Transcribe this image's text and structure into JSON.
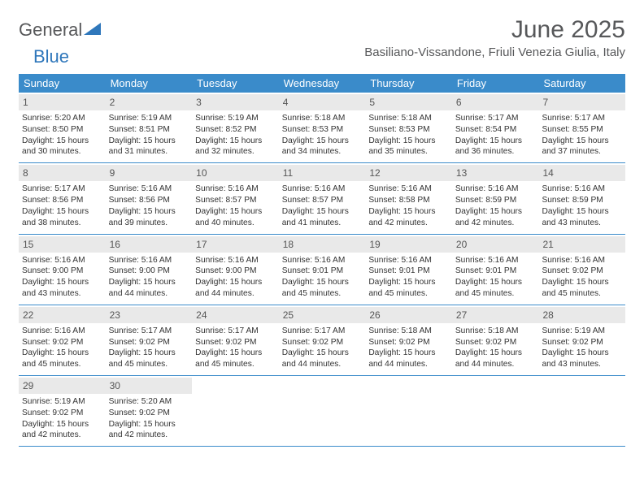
{
  "brand": {
    "word1": "General",
    "word2": "Blue"
  },
  "title": "June 2025",
  "location": "Basiliano-Vissandone, Friuli Venezia Giulia, Italy",
  "colors": {
    "header_bg": "#3a8bca",
    "header_text": "#ffffff",
    "daynum_bg": "#e9e9e9",
    "rule": "#3a8bca",
    "brand_gray": "#57585a",
    "brand_blue": "#2f77bb"
  },
  "weekdays": [
    "Sunday",
    "Monday",
    "Tuesday",
    "Wednesday",
    "Thursday",
    "Friday",
    "Saturday"
  ],
  "weeks": [
    [
      {
        "n": "1",
        "sr": "Sunrise: 5:20 AM",
        "ss": "Sunset: 8:50 PM",
        "d1": "Daylight: 15 hours",
        "d2": "and 30 minutes."
      },
      {
        "n": "2",
        "sr": "Sunrise: 5:19 AM",
        "ss": "Sunset: 8:51 PM",
        "d1": "Daylight: 15 hours",
        "d2": "and 31 minutes."
      },
      {
        "n": "3",
        "sr": "Sunrise: 5:19 AM",
        "ss": "Sunset: 8:52 PM",
        "d1": "Daylight: 15 hours",
        "d2": "and 32 minutes."
      },
      {
        "n": "4",
        "sr": "Sunrise: 5:18 AM",
        "ss": "Sunset: 8:53 PM",
        "d1": "Daylight: 15 hours",
        "d2": "and 34 minutes."
      },
      {
        "n": "5",
        "sr": "Sunrise: 5:18 AM",
        "ss": "Sunset: 8:53 PM",
        "d1": "Daylight: 15 hours",
        "d2": "and 35 minutes."
      },
      {
        "n": "6",
        "sr": "Sunrise: 5:17 AM",
        "ss": "Sunset: 8:54 PM",
        "d1": "Daylight: 15 hours",
        "d2": "and 36 minutes."
      },
      {
        "n": "7",
        "sr": "Sunrise: 5:17 AM",
        "ss": "Sunset: 8:55 PM",
        "d1": "Daylight: 15 hours",
        "d2": "and 37 minutes."
      }
    ],
    [
      {
        "n": "8",
        "sr": "Sunrise: 5:17 AM",
        "ss": "Sunset: 8:56 PM",
        "d1": "Daylight: 15 hours",
        "d2": "and 38 minutes."
      },
      {
        "n": "9",
        "sr": "Sunrise: 5:16 AM",
        "ss": "Sunset: 8:56 PM",
        "d1": "Daylight: 15 hours",
        "d2": "and 39 minutes."
      },
      {
        "n": "10",
        "sr": "Sunrise: 5:16 AM",
        "ss": "Sunset: 8:57 PM",
        "d1": "Daylight: 15 hours",
        "d2": "and 40 minutes."
      },
      {
        "n": "11",
        "sr": "Sunrise: 5:16 AM",
        "ss": "Sunset: 8:57 PM",
        "d1": "Daylight: 15 hours",
        "d2": "and 41 minutes."
      },
      {
        "n": "12",
        "sr": "Sunrise: 5:16 AM",
        "ss": "Sunset: 8:58 PM",
        "d1": "Daylight: 15 hours",
        "d2": "and 42 minutes."
      },
      {
        "n": "13",
        "sr": "Sunrise: 5:16 AM",
        "ss": "Sunset: 8:59 PM",
        "d1": "Daylight: 15 hours",
        "d2": "and 42 minutes."
      },
      {
        "n": "14",
        "sr": "Sunrise: 5:16 AM",
        "ss": "Sunset: 8:59 PM",
        "d1": "Daylight: 15 hours",
        "d2": "and 43 minutes."
      }
    ],
    [
      {
        "n": "15",
        "sr": "Sunrise: 5:16 AM",
        "ss": "Sunset: 9:00 PM",
        "d1": "Daylight: 15 hours",
        "d2": "and 43 minutes."
      },
      {
        "n": "16",
        "sr": "Sunrise: 5:16 AM",
        "ss": "Sunset: 9:00 PM",
        "d1": "Daylight: 15 hours",
        "d2": "and 44 minutes."
      },
      {
        "n": "17",
        "sr": "Sunrise: 5:16 AM",
        "ss": "Sunset: 9:00 PM",
        "d1": "Daylight: 15 hours",
        "d2": "and 44 minutes."
      },
      {
        "n": "18",
        "sr": "Sunrise: 5:16 AM",
        "ss": "Sunset: 9:01 PM",
        "d1": "Daylight: 15 hours",
        "d2": "and 45 minutes."
      },
      {
        "n": "19",
        "sr": "Sunrise: 5:16 AM",
        "ss": "Sunset: 9:01 PM",
        "d1": "Daylight: 15 hours",
        "d2": "and 45 minutes."
      },
      {
        "n": "20",
        "sr": "Sunrise: 5:16 AM",
        "ss": "Sunset: 9:01 PM",
        "d1": "Daylight: 15 hours",
        "d2": "and 45 minutes."
      },
      {
        "n": "21",
        "sr": "Sunrise: 5:16 AM",
        "ss": "Sunset: 9:02 PM",
        "d1": "Daylight: 15 hours",
        "d2": "and 45 minutes."
      }
    ],
    [
      {
        "n": "22",
        "sr": "Sunrise: 5:16 AM",
        "ss": "Sunset: 9:02 PM",
        "d1": "Daylight: 15 hours",
        "d2": "and 45 minutes."
      },
      {
        "n": "23",
        "sr": "Sunrise: 5:17 AM",
        "ss": "Sunset: 9:02 PM",
        "d1": "Daylight: 15 hours",
        "d2": "and 45 minutes."
      },
      {
        "n": "24",
        "sr": "Sunrise: 5:17 AM",
        "ss": "Sunset: 9:02 PM",
        "d1": "Daylight: 15 hours",
        "d2": "and 45 minutes."
      },
      {
        "n": "25",
        "sr": "Sunrise: 5:17 AM",
        "ss": "Sunset: 9:02 PM",
        "d1": "Daylight: 15 hours",
        "d2": "and 44 minutes."
      },
      {
        "n": "26",
        "sr": "Sunrise: 5:18 AM",
        "ss": "Sunset: 9:02 PM",
        "d1": "Daylight: 15 hours",
        "d2": "and 44 minutes."
      },
      {
        "n": "27",
        "sr": "Sunrise: 5:18 AM",
        "ss": "Sunset: 9:02 PM",
        "d1": "Daylight: 15 hours",
        "d2": "and 44 minutes."
      },
      {
        "n": "28",
        "sr": "Sunrise: 5:19 AM",
        "ss": "Sunset: 9:02 PM",
        "d1": "Daylight: 15 hours",
        "d2": "and 43 minutes."
      }
    ],
    [
      {
        "n": "29",
        "sr": "Sunrise: 5:19 AM",
        "ss": "Sunset: 9:02 PM",
        "d1": "Daylight: 15 hours",
        "d2": "and 42 minutes."
      },
      {
        "n": "30",
        "sr": "Sunrise: 5:20 AM",
        "ss": "Sunset: 9:02 PM",
        "d1": "Daylight: 15 hours",
        "d2": "and 42 minutes."
      },
      null,
      null,
      null,
      null,
      null
    ]
  ]
}
